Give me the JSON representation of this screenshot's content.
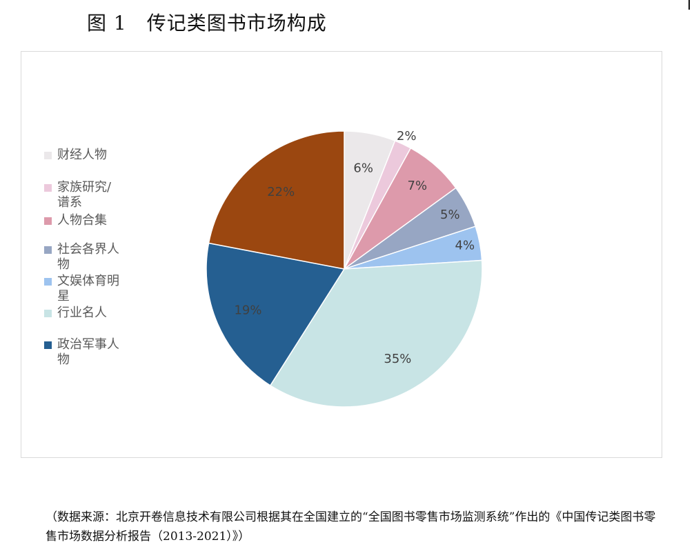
{
  "title": "图 1　传记类图书市场构成",
  "chart_data": {
    "type": "pie",
    "title": "",
    "legend_position": "left",
    "slices": [
      {
        "name": "财经人物",
        "value": 6,
        "label": "6%",
        "color": "#ebe8ea"
      },
      {
        "name": "家族研究/谱系",
        "value": 2,
        "label": "2%",
        "color": "#ecc9dc"
      },
      {
        "name": "人物合集",
        "value": 7,
        "label": "7%",
        "color": "#dd9aab"
      },
      {
        "name": "社会各界人物",
        "value": 5,
        "label": "5%",
        "color": "#97a6c3"
      },
      {
        "name": "文娱体育明星",
        "value": 4,
        "label": "4%",
        "color": "#9dc3ef"
      },
      {
        "name": "行业名人",
        "value": 35,
        "label": "35%",
        "color": "#c8e4e5"
      },
      {
        "name": "政治军事人物",
        "value": 19,
        "label": "19%",
        "color": "#255f91"
      },
      {
        "name": "",
        "value": 22,
        "label": "22%",
        "color": "#9b4710"
      }
    ],
    "legend": [
      {
        "label": "财经人物",
        "color": "#ebe8ea"
      },
      {
        "label": "家族研究/谱系",
        "color": "#ecc9dc"
      },
      {
        "label": "人物合集",
        "color": "#dd9aab"
      },
      {
        "label": "社会各界人物",
        "color": "#97a6c3"
      },
      {
        "label": "文娱体育明星",
        "color": "#9dc3ef"
      },
      {
        "label": "行业名人",
        "color": "#c8e4e5"
      },
      {
        "label": "政治军事人物",
        "color": "#255f91"
      }
    ]
  },
  "source_note": "（数据来源：北京开卷信息技术有限公司根据其在全国建立的“全国图书零售市场监测系统”作出的《中国传记类图书零售市场数据分析报告（2013-2021）》）"
}
